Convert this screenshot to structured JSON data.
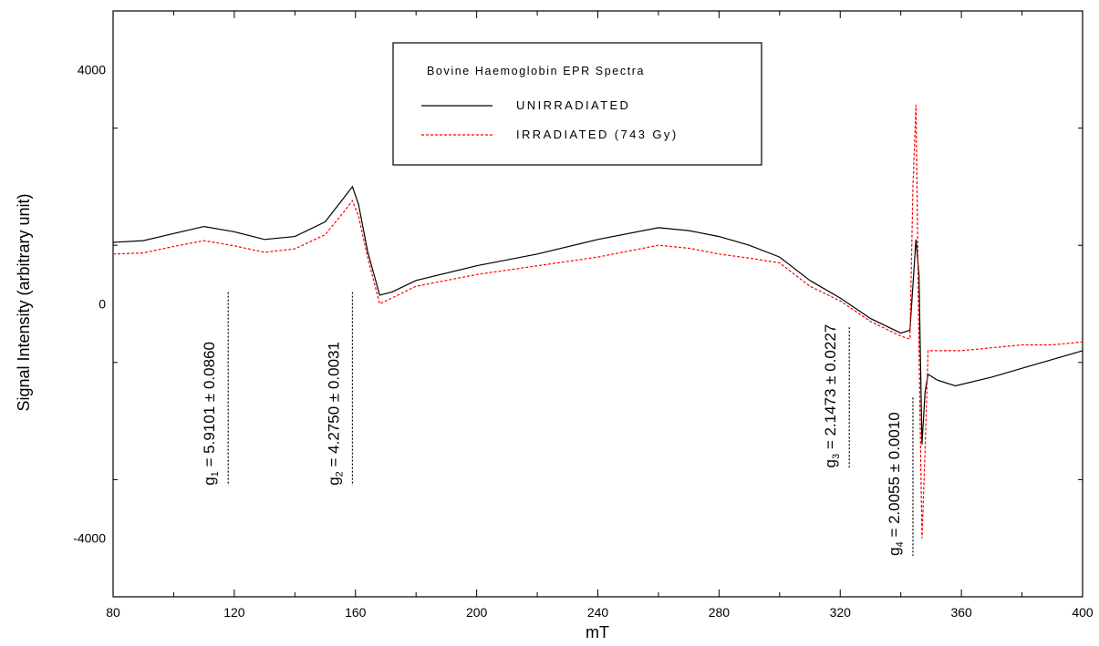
{
  "chart_data": {
    "type": "line",
    "title": "Bovine Haemoglobin EPR Spectra",
    "xlabel": "mT",
    "ylabel": "Signal Intensity (arbitrary unit)",
    "xlim": [
      80,
      400
    ],
    "ylim": [
      -5000,
      5000
    ],
    "x_ticks": [
      80,
      120,
      160,
      200,
      240,
      280,
      320,
      360,
      400
    ],
    "y_ticks": [
      -4000,
      0,
      4000
    ],
    "legend_position": "top-center",
    "grid": false,
    "series": [
      {
        "name": "UNIRRADIATED",
        "color": "#000000",
        "style": "solid",
        "points": [
          [
            80,
            1050
          ],
          [
            90,
            1080
          ],
          [
            100,
            1200
          ],
          [
            110,
            1320
          ],
          [
            120,
            1230
          ],
          [
            130,
            1100
          ],
          [
            140,
            1150
          ],
          [
            150,
            1400
          ],
          [
            156,
            1800
          ],
          [
            159,
            2000
          ],
          [
            161,
            1700
          ],
          [
            164,
            900
          ],
          [
            168,
            150
          ],
          [
            172,
            200
          ],
          [
            180,
            400
          ],
          [
            200,
            650
          ],
          [
            220,
            850
          ],
          [
            240,
            1100
          ],
          [
            260,
            1300
          ],
          [
            270,
            1250
          ],
          [
            280,
            1150
          ],
          [
            290,
            1000
          ],
          [
            300,
            800
          ],
          [
            310,
            400
          ],
          [
            320,
            100
          ],
          [
            330,
            -250
          ],
          [
            340,
            -500
          ],
          [
            343,
            -450
          ],
          [
            345,
            1100
          ],
          [
            346,
            500
          ],
          [
            347,
            -2400
          ],
          [
            348,
            -1500
          ],
          [
            349,
            -1200
          ],
          [
            352,
            -1300
          ],
          [
            358,
            -1400
          ],
          [
            370,
            -1250
          ],
          [
            380,
            -1100
          ],
          [
            390,
            -950
          ],
          [
            400,
            -800
          ]
        ]
      },
      {
        "name": "IRRADIATED (743 Gy)",
        "color": "#ff0000",
        "style": "dashed",
        "points": [
          [
            80,
            850
          ],
          [
            90,
            870
          ],
          [
            100,
            980
          ],
          [
            110,
            1080
          ],
          [
            120,
            990
          ],
          [
            130,
            880
          ],
          [
            140,
            940
          ],
          [
            150,
            1180
          ],
          [
            156,
            1560
          ],
          [
            159,
            1760
          ],
          [
            161,
            1500
          ],
          [
            164,
            800
          ],
          [
            168,
            0
          ],
          [
            172,
            100
          ],
          [
            180,
            300
          ],
          [
            200,
            500
          ],
          [
            220,
            650
          ],
          [
            240,
            800
          ],
          [
            260,
            1000
          ],
          [
            270,
            950
          ],
          [
            280,
            850
          ],
          [
            290,
            780
          ],
          [
            300,
            700
          ],
          [
            310,
            300
          ],
          [
            320,
            50
          ],
          [
            330,
            -300
          ],
          [
            340,
            -550
          ],
          [
            343,
            -600
          ],
          [
            344,
            2000
          ],
          [
            345,
            3400
          ],
          [
            346,
            -700
          ],
          [
            347,
            -4000
          ],
          [
            348,
            -2500
          ],
          [
            349,
            -800
          ],
          [
            352,
            -800
          ],
          [
            360,
            -800
          ],
          [
            370,
            -750
          ],
          [
            380,
            -700
          ],
          [
            390,
            -700
          ],
          [
            400,
            -650
          ]
        ]
      }
    ],
    "annotations": [
      {
        "id": "g1",
        "symbol": "g",
        "subscript": "1",
        "text": " = 5.9101 ± 0.0860",
        "x": 118,
        "y_top": 200,
        "y_bottom": -3100
      },
      {
        "id": "g2",
        "symbol": "g",
        "subscript": "2",
        "text": " = 4.2750 ± 0.0031",
        "x": 159,
        "y_top": 200,
        "y_bottom": -3100
      },
      {
        "id": "g3",
        "symbol": "g",
        "subscript": "3",
        "text": " = 2.1473 ± 0.0227",
        "x": 323,
        "y_top": -400,
        "y_bottom": -2800
      },
      {
        "id": "g4",
        "symbol": "g",
        "subscript": "4",
        "text": " = 2.0055 ± 0.0010",
        "x": 344,
        "y_top": -1600,
        "y_bottom": -4300
      }
    ]
  }
}
